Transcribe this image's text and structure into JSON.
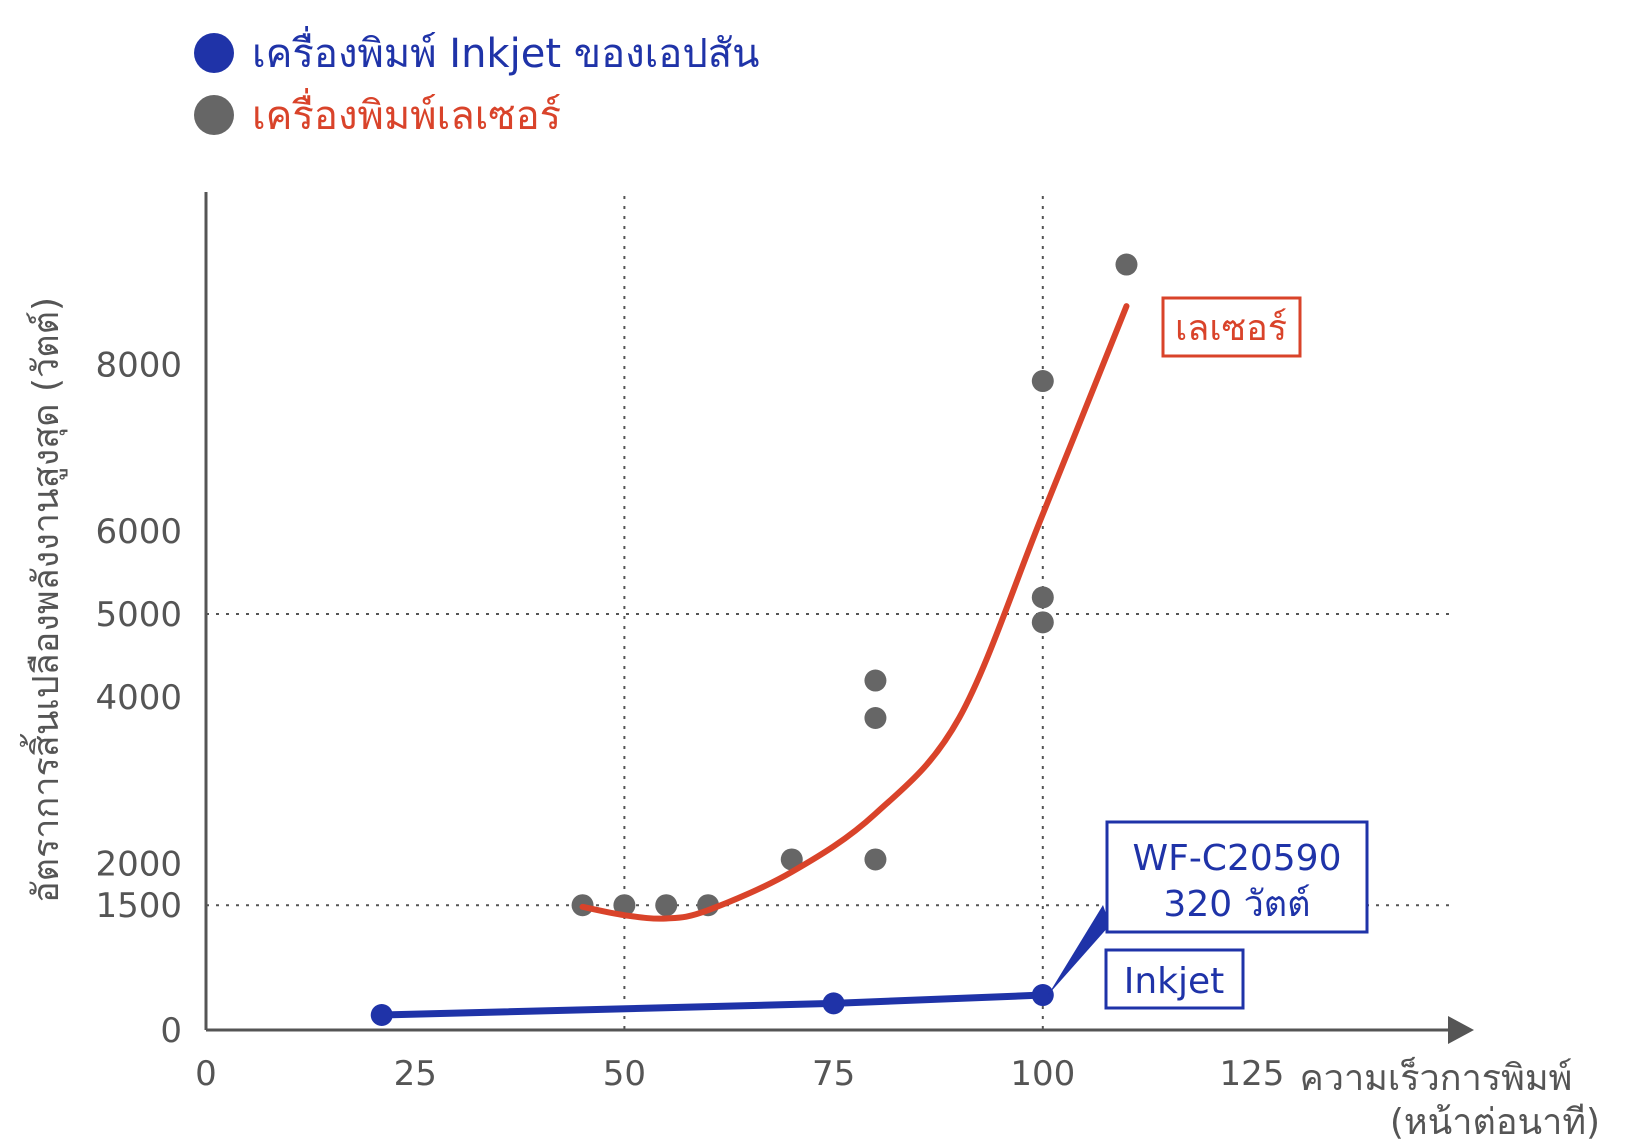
{
  "colors": {
    "inkjet": "#1f33a8",
    "laser_points": "#666666",
    "laser_curve": "#d9432a",
    "axis": "#555555",
    "grid": "#555555"
  },
  "legend": [
    {
      "label": "เครื่องพิมพ์ Inkjet ของเอปสัน",
      "marker_color": "#1f33a8",
      "text_color": "#1f33a8"
    },
    {
      "label": "เครื่องพิมพ์เลเซอร์",
      "marker_color": "#666666",
      "text_color": "#d9432a"
    }
  ],
  "chart_data": {
    "type": "scatter",
    "title": "",
    "xlabel": [
      "ความเร็วการพิมพ์",
      "(หน้าต่อนาที)"
    ],
    "ylabel": "อัตราการสิ้นเปลืองพลังงานสูงสุด (วัตต์)",
    "xlim": [
      0,
      150
    ],
    "ylim": [
      0,
      10000
    ],
    "x_ticks": [
      "0",
      "25",
      "50",
      "75",
      "100",
      "125"
    ],
    "y_ticks": [
      "0",
      "1500",
      "2000",
      "4000",
      "5000",
      "6000",
      "8000"
    ],
    "grid": {
      "vertical_at": [
        50,
        100
      ],
      "horizontal_at": [
        1500,
        5000
      ]
    },
    "series": [
      {
        "name": "เครื่องพิมพ์ Inkjet ของเอปสัน",
        "kind": "line-markers",
        "color": "#1f33a8",
        "points": [
          [
            21,
            180
          ],
          [
            75,
            320
          ],
          [
            100,
            420
          ]
        ]
      },
      {
        "name": "เครื่องพิมพ์เลเซอร์",
        "kind": "scatter",
        "color": "#666666",
        "points": [
          [
            45,
            1500
          ],
          [
            50,
            1500
          ],
          [
            55,
            1500
          ],
          [
            60,
            1500
          ],
          [
            70,
            2050
          ],
          [
            80,
            2050
          ],
          [
            80,
            3750
          ],
          [
            80,
            4200
          ],
          [
            100,
            4900
          ],
          [
            100,
            5200
          ],
          [
            100,
            7800
          ],
          [
            110,
            9200
          ]
        ]
      },
      {
        "name": "",
        "kind": "trend-curve",
        "color": "#d9432a",
        "points": [
          [
            45,
            1480
          ],
          [
            50,
            1380
          ],
          [
            55,
            1340
          ],
          [
            60,
            1440
          ],
          [
            70,
            1900
          ],
          [
            80,
            2600
          ],
          [
            90,
            3750
          ],
          [
            100,
            6200
          ],
          [
            110,
            8700
          ]
        ]
      }
    ],
    "annotations": [
      {
        "text": "เลเซอร์",
        "color": "#d9432a"
      },
      {
        "lines": [
          "WF-C20590",
          "320 วัตต์"
        ],
        "color": "#1f33a8"
      },
      {
        "text": "Inkjet",
        "color": "#1f33a8"
      }
    ]
  }
}
